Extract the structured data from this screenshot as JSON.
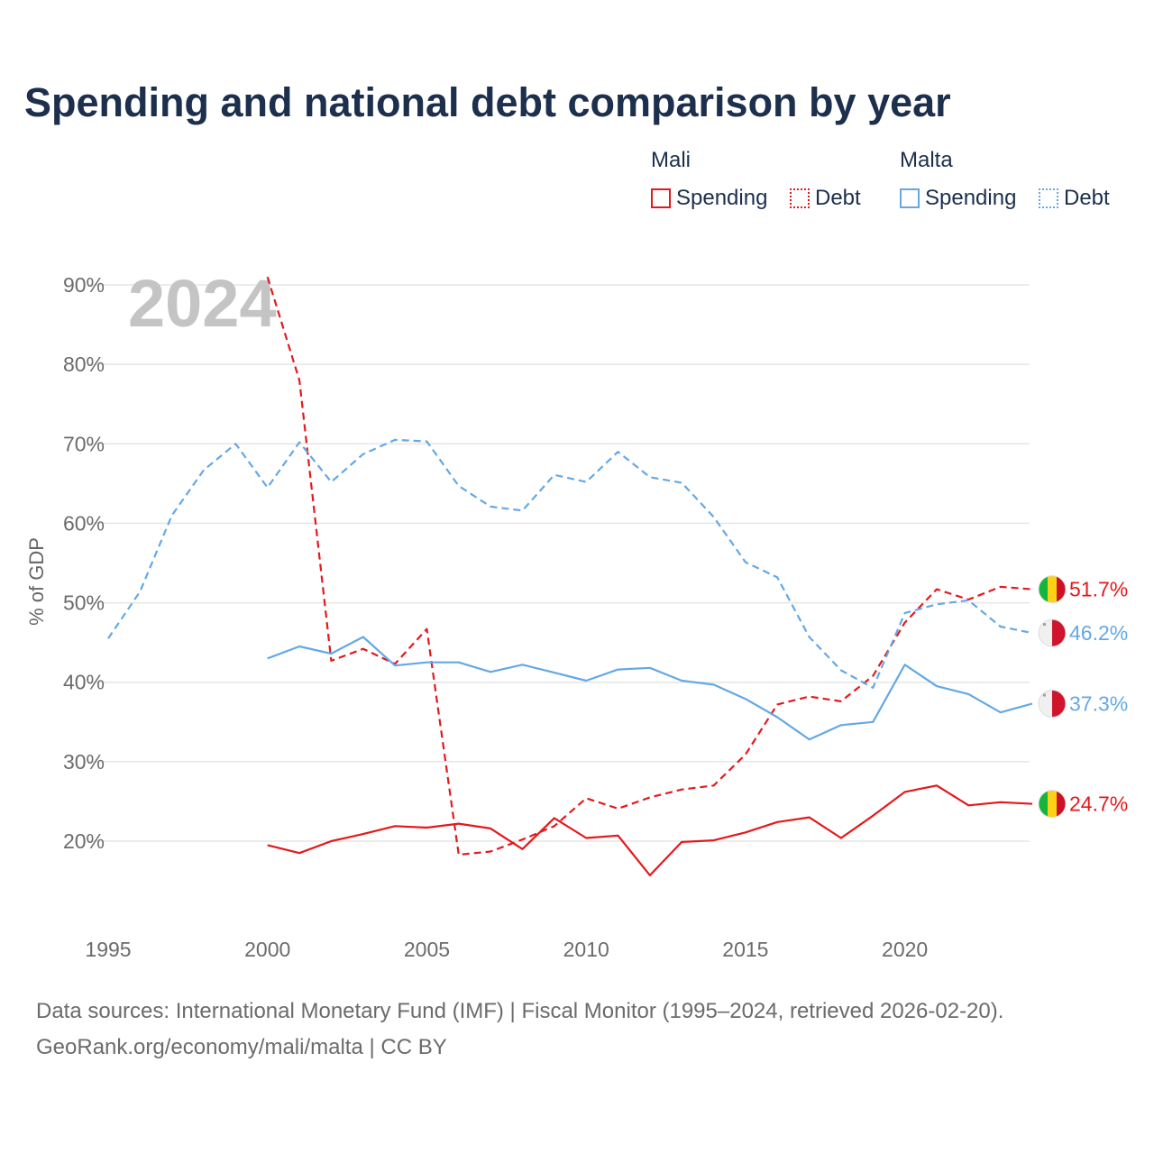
{
  "title": "Spending and national debt comparison by year",
  "legend": {
    "groups": [
      {
        "country": "Mali",
        "items": [
          {
            "label": "Spending",
            "style": "solid",
            "color": "#e3191c"
          },
          {
            "label": "Debt",
            "style": "dotted",
            "color": "#e3191c"
          }
        ]
      },
      {
        "country": "Malta",
        "items": [
          {
            "label": "Spending",
            "style": "solid",
            "color": "#64a8e6"
          },
          {
            "label": "Debt",
            "style": "dotted",
            "color": "#64a8e6"
          }
        ]
      }
    ]
  },
  "year_watermark": "2024",
  "footer": {
    "line1": "Data sources: International Monetary Fund (IMF) | Fiscal Monitor (1995–2024, retrieved 2026-02-20).",
    "line2": "GeoRank.org/economy/mali/malta | CC BY"
  },
  "chart_data": {
    "type": "line",
    "title": "Spending and national debt comparison by year",
    "ylabel": "% of GDP",
    "xlabel": "",
    "xlim": [
      1995,
      2024
    ],
    "ylim": [
      10,
      90
    ],
    "x_ticks": [
      1995,
      2000,
      2005,
      2010,
      2015,
      2020
    ],
    "y_ticks": [
      20,
      30,
      40,
      50,
      60,
      70,
      80,
      90
    ],
    "y_tick_labels": [
      "20%",
      "30%",
      "40%",
      "50%",
      "60%",
      "70%",
      "80%",
      "90%"
    ],
    "series": [
      {
        "name": "Mali Debt",
        "country": "Mali",
        "metric": "Debt",
        "color": "#e3191c",
        "dashed": true,
        "end_label": "51.7%",
        "x": [
          2000,
          2001,
          2002,
          2003,
          2004,
          2005,
          2006,
          2007,
          2008,
          2009,
          2010,
          2011,
          2012,
          2013,
          2014,
          2015,
          2016,
          2017,
          2018,
          2019,
          2020,
          2021,
          2022,
          2023,
          2024
        ],
        "values": [
          91.0,
          78.0,
          42.7,
          44.2,
          42.3,
          46.7,
          18.3,
          18.7,
          20.2,
          21.9,
          25.4,
          24.1,
          25.5,
          26.5,
          27.0,
          30.9,
          37.2,
          38.2,
          37.6,
          40.8,
          47.5,
          51.7,
          50.4,
          52.0,
          51.7
        ]
      },
      {
        "name": "Malta Debt",
        "country": "Malta",
        "metric": "Debt",
        "color": "#64a8e6",
        "dashed": true,
        "end_label": "46.2%",
        "x": [
          1995,
          1996,
          1997,
          1998,
          1999,
          2000,
          2001,
          2002,
          2003,
          2004,
          2005,
          2006,
          2007,
          2008,
          2009,
          2010,
          2011,
          2012,
          2013,
          2014,
          2015,
          2016,
          2017,
          2018,
          2019,
          2020,
          2021,
          2022,
          2023,
          2024
        ],
        "values": [
          45.5,
          51.4,
          61.0,
          66.7,
          70.0,
          64.5,
          70.2,
          65.2,
          68.7,
          70.5,
          70.3,
          64.7,
          62.1,
          61.6,
          66.1,
          65.2,
          69.0,
          65.8,
          65.1,
          60.8,
          55.1,
          53.2,
          45.7,
          41.5,
          39.3,
          48.7,
          49.8,
          50.3,
          47.0,
          46.2
        ]
      },
      {
        "name": "Malta Spending",
        "country": "Malta",
        "metric": "Spending",
        "color": "#64a8e6",
        "dashed": false,
        "end_label": "37.3%",
        "x": [
          2000,
          2001,
          2002,
          2003,
          2004,
          2005,
          2006,
          2007,
          2008,
          2009,
          2010,
          2011,
          2012,
          2013,
          2014,
          2015,
          2016,
          2017,
          2018,
          2019,
          2020,
          2021,
          2022,
          2023,
          2024
        ],
        "values": [
          43.0,
          44.5,
          43.6,
          45.7,
          42.1,
          42.5,
          42.5,
          41.3,
          42.2,
          41.2,
          40.2,
          41.6,
          41.8,
          40.2,
          39.7,
          37.9,
          35.6,
          32.8,
          34.6,
          35.0,
          42.2,
          39.5,
          38.5,
          36.2,
          37.3
        ]
      },
      {
        "name": "Mali Spending",
        "country": "Mali",
        "metric": "Spending",
        "color": "#e3191c",
        "dashed": false,
        "end_label": "24.7%",
        "x": [
          2000,
          2001,
          2002,
          2003,
          2004,
          2005,
          2006,
          2007,
          2008,
          2009,
          2010,
          2011,
          2012,
          2013,
          2014,
          2015,
          2016,
          2017,
          2018,
          2019,
          2020,
          2021,
          2022,
          2023,
          2024
        ],
        "values": [
          19.5,
          18.5,
          20.0,
          20.9,
          21.9,
          21.7,
          22.2,
          21.6,
          19.0,
          22.9,
          20.4,
          20.7,
          15.7,
          19.9,
          20.1,
          21.1,
          22.4,
          23.0,
          20.4,
          23.2,
          26.2,
          27.0,
          24.5,
          24.9,
          24.7
        ]
      }
    ]
  }
}
